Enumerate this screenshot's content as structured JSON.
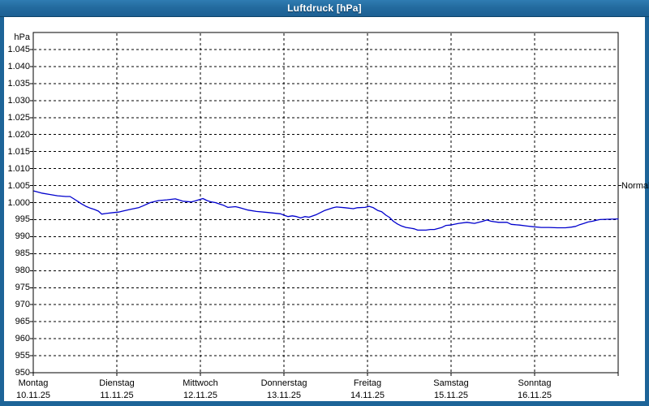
{
  "window": {
    "title": "Luftdruck [hPa]"
  },
  "colors": {
    "titlebar_bg": "#236b9f",
    "window_border": "#1d6498",
    "panel_bg": "#ffffff",
    "plot_border": "#000000",
    "grid": "#000000",
    "line": "#0000cd",
    "text": "#000000",
    "title_text": "#ffffff"
  },
  "axes": {
    "y_unit_label": "hPa",
    "right_marker_label": "Normal",
    "right_marker_value": 1005,
    "y_ticks": [
      {
        "label": "1.045",
        "value": 1045
      },
      {
        "label": "1.040",
        "value": 1040
      },
      {
        "label": "1.035",
        "value": 1035
      },
      {
        "label": "1.030",
        "value": 1030
      },
      {
        "label": "1.025",
        "value": 1025
      },
      {
        "label": "1.020",
        "value": 1020
      },
      {
        "label": "1.015",
        "value": 1015
      },
      {
        "label": "1.010",
        "value": 1010
      },
      {
        "label": "1.005",
        "value": 1005
      },
      {
        "label": "1.000",
        "value": 1000
      },
      {
        "label": "995",
        "value": 995
      },
      {
        "label": "990",
        "value": 990
      },
      {
        "label": "985",
        "value": 985
      },
      {
        "label": "980",
        "value": 980
      },
      {
        "label": "975",
        "value": 975
      },
      {
        "label": "970",
        "value": 970
      },
      {
        "label": "965",
        "value": 965
      },
      {
        "label": "960",
        "value": 960
      },
      {
        "label": "955",
        "value": 955
      },
      {
        "label": "950",
        "value": 950
      }
    ],
    "x_days": [
      {
        "name": "Montag",
        "date": "10.11.25"
      },
      {
        "name": "Dienstag",
        "date": "11.11.25"
      },
      {
        "name": "Mittwoch",
        "date": "12.11.25"
      },
      {
        "name": "Donnerstag",
        "date": "13.11.25"
      },
      {
        "name": "Freitag",
        "date": "14.11.25"
      },
      {
        "name": "Samstag",
        "date": "15.11.25"
      },
      {
        "name": "Sonntag",
        "date": "16.11.25"
      }
    ]
  },
  "chart_data": {
    "type": "line",
    "title": "Luftdruck [hPa]",
    "ylabel": "hPa",
    "ylim": [
      950,
      1050
    ],
    "x_unit": "days (0 = Montag 10.11.25, 7 = end of Sonntag 16.11.25)",
    "grid": "dashed",
    "annotations": [
      {
        "label": "Normal",
        "value": 1005,
        "axis": "right"
      }
    ],
    "series": [
      {
        "name": "Luftdruck",
        "color": "#0000cd",
        "points": [
          [
            0.01,
            1003.4
          ],
          [
            0.1,
            1002.8
          ],
          [
            0.19,
            1002.4
          ],
          [
            0.29,
            1002.0
          ],
          [
            0.39,
            1001.8
          ],
          [
            0.44,
            1001.8
          ],
          [
            0.48,
            1001.2
          ],
          [
            0.53,
            1000.4
          ],
          [
            0.58,
            999.6
          ],
          [
            0.63,
            998.9
          ],
          [
            0.68,
            998.4
          ],
          [
            0.73,
            998.0
          ],
          [
            0.78,
            997.5
          ],
          [
            0.82,
            996.6
          ],
          [
            0.87,
            996.8
          ],
          [
            0.97,
            997.1
          ],
          [
            1.02,
            997.2
          ],
          [
            1.07,
            997.5
          ],
          [
            1.16,
            998.0
          ],
          [
            1.26,
            998.5
          ],
          [
            1.31,
            999.0
          ],
          [
            1.4,
            1000.0
          ],
          [
            1.5,
            1000.6
          ],
          [
            1.6,
            1000.8
          ],
          [
            1.7,
            1001.1
          ],
          [
            1.74,
            1000.8
          ],
          [
            1.79,
            1000.4
          ],
          [
            1.89,
            1000.2
          ],
          [
            1.94,
            1000.5
          ],
          [
            2.03,
            1001.2
          ],
          [
            2.08,
            1000.6
          ],
          [
            2.13,
            1000.2
          ],
          [
            2.18,
            1000.0
          ],
          [
            2.23,
            999.6
          ],
          [
            2.28,
            999.2
          ],
          [
            2.33,
            998.6
          ],
          [
            2.42,
            998.8
          ],
          [
            2.47,
            998.5
          ],
          [
            2.57,
            997.8
          ],
          [
            2.67,
            997.4
          ],
          [
            2.81,
            997.1
          ],
          [
            2.96,
            996.7
          ],
          [
            3.0,
            996.3
          ],
          [
            3.05,
            995.9
          ],
          [
            3.1,
            996.1
          ],
          [
            3.15,
            995.9
          ],
          [
            3.2,
            995.5
          ],
          [
            3.25,
            995.9
          ],
          [
            3.3,
            995.7
          ],
          [
            3.39,
            996.5
          ],
          [
            3.49,
            997.7
          ],
          [
            3.59,
            998.5
          ],
          [
            3.63,
            998.7
          ],
          [
            3.73,
            998.5
          ],
          [
            3.83,
            998.2
          ],
          [
            3.88,
            998.5
          ],
          [
            3.97,
            998.6
          ],
          [
            4.02,
            998.9
          ],
          [
            4.07,
            998.5
          ],
          [
            4.12,
            997.7
          ],
          [
            4.17,
            997.3
          ],
          [
            4.22,
            996.3
          ],
          [
            4.26,
            995.7
          ],
          [
            4.31,
            994.5
          ],
          [
            4.36,
            993.7
          ],
          [
            4.41,
            993.1
          ],
          [
            4.46,
            992.7
          ],
          [
            4.51,
            992.5
          ],
          [
            4.56,
            992.3
          ],
          [
            4.6,
            991.9
          ],
          [
            4.7,
            991.9
          ],
          [
            4.75,
            992.1
          ],
          [
            4.8,
            992.1
          ],
          [
            4.89,
            992.7
          ],
          [
            4.94,
            993.3
          ],
          [
            4.99,
            993.4
          ],
          [
            5.09,
            993.9
          ],
          [
            5.19,
            994.2
          ],
          [
            5.28,
            993.9
          ],
          [
            5.38,
            994.5
          ],
          [
            5.43,
            994.9
          ],
          [
            5.48,
            994.5
          ],
          [
            5.57,
            994.2
          ],
          [
            5.67,
            994.2
          ],
          [
            5.72,
            993.6
          ],
          [
            5.82,
            993.4
          ],
          [
            5.91,
            993.1
          ],
          [
            5.98,
            992.9
          ],
          [
            6.08,
            992.7
          ],
          [
            6.17,
            992.7
          ],
          [
            6.27,
            992.6
          ],
          [
            6.37,
            992.6
          ],
          [
            6.44,
            992.8
          ],
          [
            6.49,
            993.0
          ],
          [
            6.54,
            993.5
          ],
          [
            6.59,
            993.9
          ],
          [
            6.64,
            994.3
          ],
          [
            6.69,
            994.5
          ],
          [
            6.74,
            994.8
          ],
          [
            6.78,
            995.0
          ],
          [
            6.88,
            995.1
          ],
          [
            7.0,
            995.2
          ]
        ]
      }
    ]
  }
}
